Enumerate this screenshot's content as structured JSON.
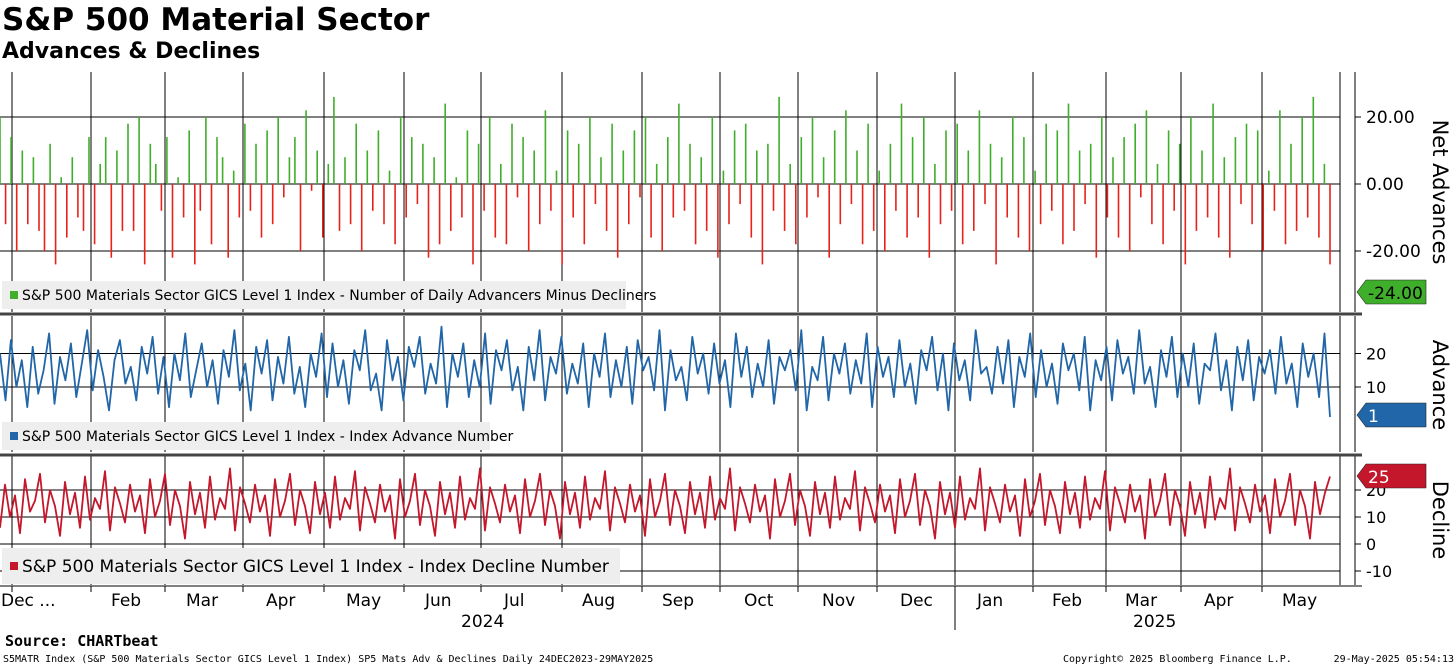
{
  "page": {
    "title": "S&P 500 Material Sector",
    "subtitle": "Advances & Declines",
    "source": "Source: CHARTbeat",
    "footer_left": "S5MATR Index (S&P 500 Materials Sector GICS Level 1 Index) SP5 Mats Adv & Declines  Daily 24DEC2023-29MAY2025",
    "footer_mid": "Copyright© 2025 Bloomberg Finance L.P.",
    "footer_right": "29-May-2025 05:54:13"
  },
  "colors": {
    "positive": "#3fae2a",
    "negative": "#e8221b",
    "advance": "#2166a8",
    "decline": "#c4172c",
    "grid": "#000000",
    "legend_bg": "#eeeeee"
  },
  "chart_data": [
    {
      "type": "bar",
      "panel": "net",
      "axis_title": "Net Advances",
      "legend": "S&P 500 Materials Sector GICS Level 1 Index - Number of Daily Advancers Minus Decliners",
      "ylim": [
        -36,
        40
      ],
      "yticks": [
        "20.00",
        "0.00",
        "-20.00"
      ],
      "last_value_label": "-24.00",
      "last_value": -24,
      "values": [
        20,
        -12,
        14,
        -20,
        10,
        -12,
        8,
        -14,
        -20,
        12,
        -24,
        2,
        -16,
        8,
        -10,
        -14,
        14,
        -18,
        6,
        14,
        -22,
        10,
        -14,
        18,
        -14,
        20,
        -24,
        12,
        6,
        -8,
        14,
        -22,
        2,
        -10,
        16,
        -24,
        -8,
        20,
        -18,
        14,
        8,
        -22,
        4,
        -10,
        18,
        -8,
        12,
        -16,
        16,
        -12,
        20,
        -4,
        8,
        14,
        -20,
        22,
        -2,
        10,
        -16,
        6,
        26,
        -14,
        8,
        -12,
        18,
        -20,
        10,
        -8,
        16,
        -12,
        4,
        -18,
        20,
        -10,
        14,
        -6,
        12,
        -22,
        8,
        -18,
        24,
        -14,
        2,
        -10,
        16,
        -24,
        12,
        -8,
        20,
        -16,
        6,
        -18,
        18,
        -4,
        14,
        -20,
        10,
        -12,
        22,
        -8,
        4,
        -24,
        16,
        -10,
        12,
        -18,
        20,
        -6,
        8,
        -14,
        18,
        -22,
        10,
        -12,
        16,
        -4,
        20,
        -16,
        6,
        -20,
        14,
        -10,
        24,
        -8,
        12,
        -18,
        8,
        -14,
        20,
        -22,
        4,
        -12,
        16,
        -6,
        18,
        -16,
        10,
        -24,
        12,
        -8,
        26,
        -14,
        6,
        -18,
        14,
        -10,
        20,
        -4,
        8,
        -22,
        16,
        -12,
        22,
        -6,
        10,
        -18,
        18,
        -14,
        4,
        -20,
        12,
        -8,
        24,
        -16,
        14,
        -10,
        20,
        -22,
        6,
        -12,
        16,
        -8,
        18,
        -18,
        10,
        -14,
        22,
        -6,
        12,
        -24,
        8,
        -10,
        20,
        -16,
        14,
        -20,
        4,
        -12,
        18,
        -8,
        16,
        -18,
        24,
        -14,
        10,
        -6,
        12,
        -22,
        20,
        -10,
        8,
        -16,
        14,
        -20,
        18,
        -4,
        22,
        -12,
        6,
        -18,
        16,
        -8,
        12,
        -24,
        20,
        -14,
        10,
        -10,
        24,
        -16,
        8,
        -22,
        14,
        -6,
        18,
        -12,
        16,
        -20,
        4,
        -8,
        22,
        -18,
        12,
        -14,
        20,
        -10,
        26,
        -16,
        6,
        -24
      ],
      "color_positive": "#3fae2a",
      "color_negative": "#e8221b"
    },
    {
      "type": "line",
      "panel": "advance",
      "axis_title": "Advance",
      "legend": "S&P 500 Materials Sector GICS Level 1 Index - Index Advance Number",
      "ylim": [
        -9,
        30
      ],
      "yticks": [
        "20",
        "10"
      ],
      "last_value_label": "1",
      "last_value": 1,
      "color": "#2166a8",
      "values": [
        20,
        6,
        24,
        10,
        18,
        4,
        22,
        8,
        15,
        26,
        5,
        19,
        12,
        23,
        7,
        17,
        27,
        9,
        21,
        13,
        3,
        18,
        24,
        11,
        16,
        6,
        22,
        14,
        25,
        8,
        19,
        4,
        20,
        12,
        26,
        7,
        15,
        23,
        10,
        18,
        5,
        21,
        13,
        27,
        9,
        17,
        3,
        22,
        14,
        24,
        6,
        19,
        11,
        25,
        8,
        16,
        4,
        20,
        13,
        26,
        7,
        23,
        10,
        18,
        5,
        21,
        15,
        27,
        9,
        14,
        3,
        24,
        12,
        19,
        6,
        22,
        16,
        25,
        8,
        17,
        11,
        28,
        4,
        20,
        13,
        23,
        7,
        18,
        10,
        26,
        5,
        21,
        15,
        24,
        9,
        16,
        3,
        22,
        12,
        27,
        6,
        19,
        14,
        25,
        8,
        17,
        11,
        23,
        4,
        20,
        13,
        26,
        7,
        18,
        10,
        22,
        5,
        24,
        15,
        19,
        9,
        27,
        3,
        21,
        12,
        16,
        6,
        25,
        14,
        20,
        8,
        23,
        11,
        18,
        4,
        26,
        13,
        22,
        7,
        17,
        10,
        24,
        5,
        19,
        15,
        21,
        9,
        27,
        3,
        16,
        12,
        25,
        6,
        20,
        14,
        23,
        8,
        18,
        11,
        26,
        4,
        22,
        13,
        19,
        7,
        24,
        10,
        17,
        5,
        21,
        15,
        25,
        9,
        20,
        3,
        23,
        12,
        18,
        6,
        27,
        14,
        16,
        8,
        22,
        11,
        24,
        4,
        19,
        13,
        26,
        7,
        21,
        10,
        17,
        5,
        23,
        15,
        20,
        9,
        25,
        3,
        18,
        12,
        22,
        6,
        24,
        14,
        19,
        8,
        27,
        11,
        16,
        4,
        21,
        13,
        25,
        7,
        20,
        10,
        23,
        5,
        17,
        15,
        26,
        9,
        18,
        3,
        22,
        12,
        24,
        6,
        19,
        14,
        21,
        8,
        25,
        11,
        17,
        4,
        23,
        13,
        20,
        7,
        26,
        1
      ]
    },
    {
      "type": "line",
      "panel": "decline",
      "axis_title": "Decline",
      "legend": "S&P 500 Materials Sector GICS Level 1 Index - Index Decline Number",
      "ylim": [
        -13,
        29
      ],
      "yticks": [
        "20",
        "10",
        "0",
        "-10"
      ],
      "last_value_label": "25",
      "last_value": 25,
      "color": "#c4172c",
      "values": [
        6,
        22,
        10,
        18,
        4,
        24,
        12,
        16,
        26,
        8,
        20,
        14,
        3,
        23,
        11,
        19,
        6,
        25,
        9,
        17,
        13,
        27,
        5,
        21,
        15,
        8,
        22,
        12,
        18,
        4,
        24,
        10,
        16,
        26,
        7,
        20,
        14,
        2,
        23,
        11,
        19,
        6,
        25,
        9,
        17,
        13,
        28,
        5,
        21,
        15,
        8,
        22,
        12,
        18,
        3,
        24,
        10,
        16,
        26,
        7,
        20,
        14,
        4,
        23,
        11,
        19,
        6,
        25,
        9,
        17,
        13,
        27,
        5,
        21,
        15,
        8,
        22,
        12,
        18,
        2,
        24,
        10,
        16,
        26,
        7,
        20,
        14,
        3,
        23,
        11,
        19,
        6,
        25,
        9,
        17,
        13,
        28,
        5,
        21,
        15,
        8,
        22,
        12,
        18,
        4,
        24,
        10,
        16,
        26,
        7,
        20,
        14,
        2,
        23,
        11,
        19,
        6,
        25,
        9,
        17,
        13,
        27,
        5,
        21,
        15,
        8,
        22,
        12,
        18,
        3,
        24,
        10,
        16,
        26,
        7,
        20,
        14,
        4,
        23,
        11,
        19,
        6,
        25,
        9,
        17,
        13,
        28,
        5,
        21,
        15,
        8,
        22,
        12,
        18,
        2,
        24,
        10,
        16,
        26,
        7,
        20,
        14,
        3,
        23,
        11,
        19,
        6,
        25,
        9,
        17,
        13,
        27,
        5,
        21,
        15,
        8,
        22,
        12,
        18,
        4,
        24,
        10,
        16,
        26,
        7,
        20,
        14,
        2,
        23,
        11,
        19,
        6,
        25,
        9,
        17,
        13,
        28,
        5,
        21,
        15,
        8,
        22,
        12,
        18,
        3,
        24,
        10,
        16,
        26,
        7,
        20,
        14,
        4,
        23,
        11,
        19,
        6,
        25,
        9,
        17,
        13,
        27,
        5,
        21,
        15,
        8,
        22,
        12,
        18,
        2,
        24,
        10,
        16,
        26,
        7,
        20,
        14,
        3,
        23,
        11,
        19,
        6,
        25,
        9,
        17,
        13,
        28,
        5,
        21,
        15,
        8,
        22,
        12,
        18,
        4,
        24,
        10,
        16,
        26,
        7,
        20,
        14,
        2,
        23,
        11,
        19,
        25
      ]
    }
  ],
  "x_axis": {
    "months": [
      "Dec ...",
      "Feb",
      "Mar",
      "Apr",
      "May",
      "Jun",
      "Jul",
      "Aug",
      "Sep",
      "Oct",
      "Nov",
      "Dec",
      "Jan",
      "Feb",
      "Mar",
      "Apr",
      "May"
    ],
    "years": [
      "2024",
      "2025"
    ]
  }
}
